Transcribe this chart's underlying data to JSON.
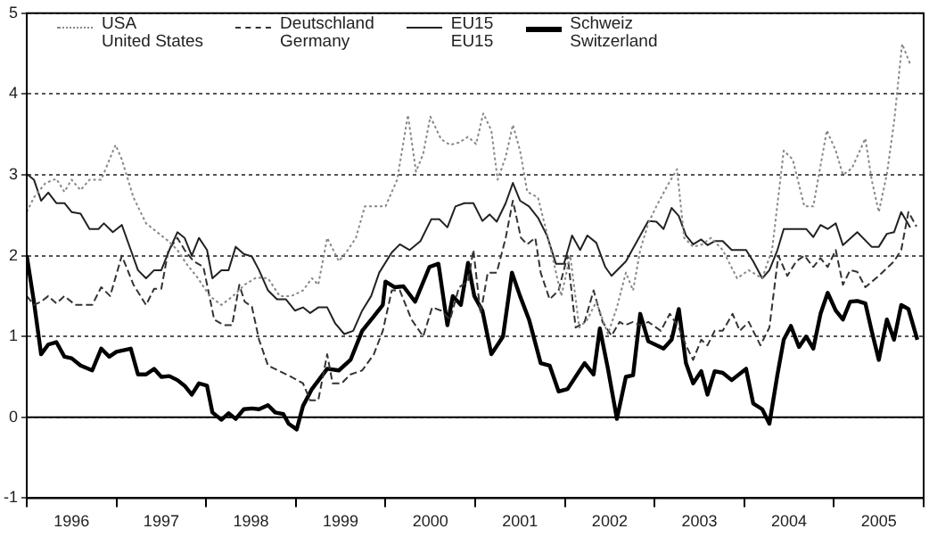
{
  "chart_data": {
    "type": "line",
    "xlim": [
      1996,
      2006
    ],
    "ylim": [
      -1,
      5
    ],
    "yticks": [
      -1,
      0,
      1,
      2,
      3,
      4,
      5
    ],
    "xticks": [
      {
        "value": 1996,
        "label": null
      },
      {
        "value": 1996.5,
        "label": "1996"
      },
      {
        "value": 1997,
        "label": null
      },
      {
        "value": 1997.5,
        "label": "1997"
      },
      {
        "value": 1998,
        "label": null
      },
      {
        "value": 1998.5,
        "label": "1998"
      },
      {
        "value": 1999,
        "label": null
      },
      {
        "value": 1999.5,
        "label": "1999"
      },
      {
        "value": 2000,
        "label": null
      },
      {
        "value": 2000.5,
        "label": "2000"
      },
      {
        "value": 2001,
        "label": null
      },
      {
        "value": 2001.5,
        "label": "2001"
      },
      {
        "value": 2002,
        "label": null
      },
      {
        "value": 2002.5,
        "label": "2002"
      },
      {
        "value": 2003,
        "label": null
      },
      {
        "value": 2003.5,
        "label": "2003"
      },
      {
        "value": 2004,
        "label": null
      },
      {
        "value": 2004.5,
        "label": "2004"
      },
      {
        "value": 2005,
        "label": null
      },
      {
        "value": 2005.5,
        "label": "2005"
      },
      {
        "value": 2006,
        "label": null
      }
    ],
    "grid": "y",
    "legend": "top left",
    "marker": "none",
    "ref_lines": [
      {
        "axis": "y",
        "value": 0,
        "color": "#000000",
        "line_style": "solid"
      }
    ],
    "series": [
      {
        "name": "USA\nUnited States",
        "color": "#888888",
        "line_style": "dotted",
        "x": [
          1996,
          1996.08,
          1996.21,
          1996.33,
          1996.42,
          1996.5,
          1996.6,
          1996.7,
          1996.83,
          1996.99,
          1997.06,
          1997.19,
          1997.33,
          1997.5,
          1997.58,
          1997.68,
          1997.78,
          1997.91,
          1998.04,
          1998.17,
          1998.3,
          1998.43,
          1998.56,
          1998.69,
          1998.82,
          1998.95,
          1999.08,
          1999.18,
          1999.25,
          1999.35,
          1999.48,
          1999.58,
          1999.67,
          1999.77,
          2000,
          2000.13,
          2000.25,
          2000.34,
          2000.42,
          2000.5,
          2000.62,
          2000.72,
          2000.82,
          2000.92,
          2001.01,
          2001.09,
          2001.18,
          2001.25,
          2001.34,
          2001.42,
          2001.5,
          2001.58,
          2001.7,
          2001.83,
          2001.96,
          2002.06,
          2002.16,
          2002.25,
          2002.35,
          2002.48,
          2002.58,
          2002.68,
          2002.76,
          2002.84,
          2002.93,
          2003.02,
          2003.14,
          2003.25,
          2003.33,
          2003.43,
          2003.53,
          2003.63,
          2003.76,
          2003.92,
          2004.05,
          2004.2,
          2004.31,
          2004.44,
          2004.54,
          2004.67,
          2004.77,
          2004.92,
          2005.02,
          2005.1,
          2005.2,
          2005.35,
          2005.42,
          2005.5,
          2005.59,
          2005.67,
          2005.76,
          2005.85
        ],
        "values": [
          2.54,
          2.72,
          2.9,
          2.95,
          2.79,
          2.94,
          2.81,
          2.94,
          2.94,
          3.37,
          3.19,
          2.72,
          2.4,
          2.25,
          2.18,
          2.07,
          1.9,
          1.72,
          1.5,
          1.39,
          1.5,
          1.64,
          1.73,
          1.72,
          1.5,
          1.5,
          1.57,
          1.72,
          1.64,
          2.22,
          1.93,
          2.07,
          2.22,
          2.61,
          2.61,
          2.94,
          3.74,
          3.04,
          3.26,
          3.72,
          3.44,
          3.37,
          3.4,
          3.47,
          3.38,
          3.76,
          3.55,
          2.94,
          3.22,
          3.62,
          3.3,
          2.79,
          2.72,
          2.14,
          1.5,
          2.0,
          1.11,
          1.21,
          1.43,
          1.03,
          1.36,
          1.79,
          1.57,
          2.07,
          2.4,
          2.61,
          2.86,
          3.07,
          2.22,
          2.11,
          2.14,
          2.22,
          2.07,
          1.72,
          1.82,
          1.72,
          2.07,
          3.3,
          3.19,
          2.61,
          2.61,
          3.55,
          3.3,
          3.0,
          3.08,
          3.45,
          2.94,
          2.54,
          3.01,
          3.65,
          4.62,
          4.37
        ]
      },
      {
        "name": "Deutschland\nGermany",
        "color": "#333333",
        "line_style": "dashed",
        "x": [
          1996,
          1996.08,
          1996.16,
          1996.24,
          1996.33,
          1996.42,
          1996.54,
          1996.73,
          1996.83,
          1996.93,
          1997.06,
          1997.19,
          1997.33,
          1997.42,
          1997.5,
          1997.58,
          1997.68,
          1997.76,
          1997.86,
          1997.97,
          1998.09,
          1998.2,
          1998.29,
          1998.37,
          1998.43,
          1998.51,
          1998.59,
          1998.69,
          1998.82,
          1998.95,
          1999.08,
          1999.16,
          1999.25,
          1999.35,
          1999.41,
          1999.51,
          1999.61,
          1999.74,
          1999.87,
          1999.97,
          2000.07,
          2000.16,
          2000.29,
          2000.42,
          2000.52,
          2000.62,
          2000.72,
          2000.82,
          2000.92,
          2000.98,
          2001.06,
          2001.14,
          2001.24,
          2001.34,
          2001.42,
          2001.51,
          2001.58,
          2001.67,
          2001.73,
          2001.83,
          2001.93,
          2002.03,
          2002.12,
          2002.22,
          2002.32,
          2002.42,
          2002.52,
          2002.61,
          2002.67,
          2002.76,
          2002.84,
          2002.93,
          2003.07,
          2003.17,
          2003.27,
          2003.35,
          2003.43,
          2003.52,
          2003.59,
          2003.67,
          2003.76,
          2003.87,
          2003.95,
          2004.05,
          2004.18,
          2004.28,
          2004.38,
          2004.48,
          2004.58,
          2004.67,
          2004.77,
          2004.85,
          2004.93,
          2005.02,
          2005.1,
          2005.18,
          2005.26,
          2005.35,
          2005.5,
          2005.67,
          2005.75,
          2005.83,
          2005.92
        ],
        "values": [
          1.5,
          1.39,
          1.43,
          1.5,
          1.41,
          1.5,
          1.39,
          1.39,
          1.61,
          1.5,
          2.0,
          1.64,
          1.39,
          1.59,
          1.59,
          2.07,
          2.22,
          2.07,
          1.93,
          1.86,
          1.21,
          1.14,
          1.14,
          1.64,
          1.43,
          1.37,
          0.96,
          0.64,
          0.57,
          0.5,
          0.42,
          0.21,
          0.21,
          0.78,
          0.42,
          0.42,
          0.53,
          0.58,
          0.78,
          1.07,
          1.57,
          1.57,
          1.21,
          1.0,
          1.36,
          1.32,
          1.21,
          1.61,
          1.68,
          2.07,
          1.28,
          1.79,
          1.79,
          2.22,
          2.68,
          2.22,
          2.14,
          2.22,
          1.79,
          1.46,
          1.57,
          2.0,
          1.11,
          1.18,
          1.57,
          1.18,
          1.01,
          1.18,
          1.14,
          1.18,
          1.14,
          1.18,
          1.07,
          1.28,
          1.11,
          0.89,
          0.71,
          0.96,
          0.89,
          1.07,
          1.07,
          1.28,
          1.07,
          1.18,
          0.89,
          1.11,
          2.0,
          1.75,
          1.93,
          2.0,
          1.86,
          1.97,
          1.86,
          2.07,
          1.64,
          1.82,
          1.8,
          1.61,
          1.75,
          1.93,
          2.07,
          2.54,
          2.36
        ]
      },
      {
        "name": "EU15\nEU15",
        "color": "#222222",
        "line_style": "solid",
        "x": [
          1996,
          1996.08,
          1996.16,
          1996.24,
          1996.33,
          1996.42,
          1996.5,
          1996.6,
          1996.7,
          1996.8,
          1996.86,
          1996.96,
          1997.06,
          1997.16,
          1997.24,
          1997.33,
          1997.42,
          1997.5,
          1997.59,
          1997.68,
          1997.76,
          1997.84,
          1997.92,
          1998.01,
          1998.07,
          1998.17,
          1998.25,
          1998.33,
          1998.42,
          1998.51,
          1998.59,
          1998.69,
          1998.79,
          1998.89,
          1998.99,
          1999.08,
          1999.16,
          1999.25,
          1999.35,
          1999.44,
          1999.54,
          1999.64,
          1999.74,
          1999.84,
          1999.93,
          2000.07,
          2000.16,
          2000.27,
          2000.39,
          2000.51,
          2000.6,
          2000.69,
          2000.78,
          2000.88,
          2000.98,
          2001.08,
          2001.16,
          2001.24,
          2001.34,
          2001.42,
          2001.5,
          2001.6,
          2001.7,
          2001.8,
          2001.9,
          2001.99,
          2002.08,
          2002.17,
          2002.25,
          2002.35,
          2002.45,
          2002.52,
          2002.68,
          2002.84,
          2002.93,
          2003.02,
          2003.1,
          2003.19,
          2003.27,
          2003.35,
          2003.43,
          2003.52,
          2003.59,
          2003.67,
          2003.76,
          2003.86,
          2004.02,
          2004.1,
          2004.2,
          2004.28,
          2004.37,
          2004.44,
          2004.61,
          2004.69,
          2004.77,
          2004.85,
          2004.93,
          2005.02,
          2005.1,
          2005.26,
          2005.42,
          2005.5,
          2005.59,
          2005.67,
          2005.75,
          2005.85
        ],
        "values": [
          3.01,
          2.94,
          2.68,
          2.78,
          2.65,
          2.65,
          2.54,
          2.52,
          2.33,
          2.33,
          2.4,
          2.29,
          2.38,
          2.07,
          1.82,
          1.72,
          1.82,
          1.82,
          2.07,
          2.29,
          2.22,
          2.0,
          2.22,
          2.07,
          1.72,
          1.82,
          1.82,
          2.11,
          2.02,
          1.99,
          1.82,
          1.57,
          1.46,
          1.46,
          1.32,
          1.36,
          1.29,
          1.36,
          1.36,
          1.16,
          1.03,
          1.07,
          1.32,
          1.5,
          1.79,
          2.04,
          2.14,
          2.07,
          2.18,
          2.45,
          2.45,
          2.35,
          2.61,
          2.65,
          2.65,
          2.43,
          2.51,
          2.42,
          2.65,
          2.9,
          2.68,
          2.61,
          2.47,
          2.25,
          1.9,
          1.9,
          2.25,
          2.07,
          2.25,
          2.16,
          1.86,
          1.75,
          1.93,
          2.25,
          2.43,
          2.42,
          2.33,
          2.59,
          2.49,
          2.25,
          2.14,
          2.2,
          2.13,
          2.18,
          2.18,
          2.07,
          2.07,
          1.93,
          1.72,
          1.82,
          2.07,
          2.33,
          2.33,
          2.33,
          2.23,
          2.38,
          2.33,
          2.4,
          2.13,
          2.29,
          2.11,
          2.11,
          2.27,
          2.29,
          2.54,
          2.35
        ]
      },
      {
        "name": "Schweiz\nSwitzerland",
        "color": "#000000",
        "line_style": "solid",
        "x": [
          1996,
          1996.08,
          1996.16,
          1996.24,
          1996.33,
          1996.42,
          1996.5,
          1996.6,
          1996.73,
          1996.83,
          1996.92,
          1997,
          1997.16,
          1997.24,
          1997.33,
          1997.42,
          1997.5,
          1997.59,
          1997.68,
          1997.76,
          1997.84,
          1997.92,
          1998.01,
          1998.07,
          1998.17,
          1998.25,
          1998.33,
          1998.42,
          1998.51,
          1998.59,
          1998.69,
          1998.77,
          1998.86,
          1998.92,
          1999.01,
          1999.08,
          1999.18,
          1999.35,
          1999.48,
          1999.61,
          1999.74,
          1999.87,
          1999.97,
          2000,
          2000.1,
          2000.2,
          2000.33,
          2000.49,
          2000.59,
          2000.69,
          2000.75,
          2000.84,
          2000.92,
          2000.99,
          2001.08,
          2001.18,
          2001.31,
          2001.41,
          2001.5,
          2001.6,
          2001.73,
          2001.83,
          2001.93,
          2002.03,
          2002.16,
          2002.22,
          2002.32,
          2002.39,
          2002.48,
          2002.58,
          2002.68,
          2002.76,
          2002.84,
          2002.93,
          2003.1,
          2003.19,
          2003.27,
          2003.35,
          2003.43,
          2003.52,
          2003.59,
          2003.67,
          2003.76,
          2003.86,
          2004.02,
          2004.1,
          2004.2,
          2004.28,
          2004.37,
          2004.44,
          2004.52,
          2004.61,
          2004.69,
          2004.77,
          2004.85,
          2004.93,
          2005.02,
          2005.1,
          2005.18,
          2005.26,
          2005.35,
          2005.42,
          2005.5,
          2005.59,
          2005.67,
          2005.75,
          2005.83,
          2005.93
        ],
        "values": [
          2.0,
          1.43,
          0.78,
          0.9,
          0.93,
          0.75,
          0.73,
          0.64,
          0.58,
          0.85,
          0.75,
          0.81,
          0.85,
          0.53,
          0.53,
          0.6,
          0.5,
          0.51,
          0.46,
          0.39,
          0.28,
          0.42,
          0.39,
          0.06,
          -0.03,
          0.05,
          -0.02,
          0.1,
          0.11,
          0.1,
          0.15,
          0.06,
          0.04,
          -0.08,
          -0.15,
          0.14,
          0.35,
          0.6,
          0.58,
          0.71,
          1.07,
          1.25,
          1.39,
          1.68,
          1.61,
          1.62,
          1.43,
          1.86,
          1.9,
          1.14,
          1.5,
          1.39,
          1.91,
          1.5,
          1.32,
          0.78,
          1.0,
          1.79,
          1.5,
          1.21,
          0.67,
          0.64,
          0.32,
          0.35,
          0.57,
          0.67,
          0.53,
          1.1,
          0.6,
          -0.02,
          0.5,
          0.52,
          1.28,
          0.94,
          0.85,
          0.96,
          1.34,
          0.67,
          0.42,
          0.57,
          0.28,
          0.57,
          0.55,
          0.46,
          0.6,
          0.17,
          0.1,
          -0.08,
          0.53,
          0.96,
          1.13,
          0.87,
          1.0,
          0.85,
          1.28,
          1.54,
          1.32,
          1.21,
          1.43,
          1.44,
          1.41,
          1.07,
          0.71,
          1.21,
          0.96,
          1.39,
          1.34,
          0.96
        ]
      }
    ]
  }
}
